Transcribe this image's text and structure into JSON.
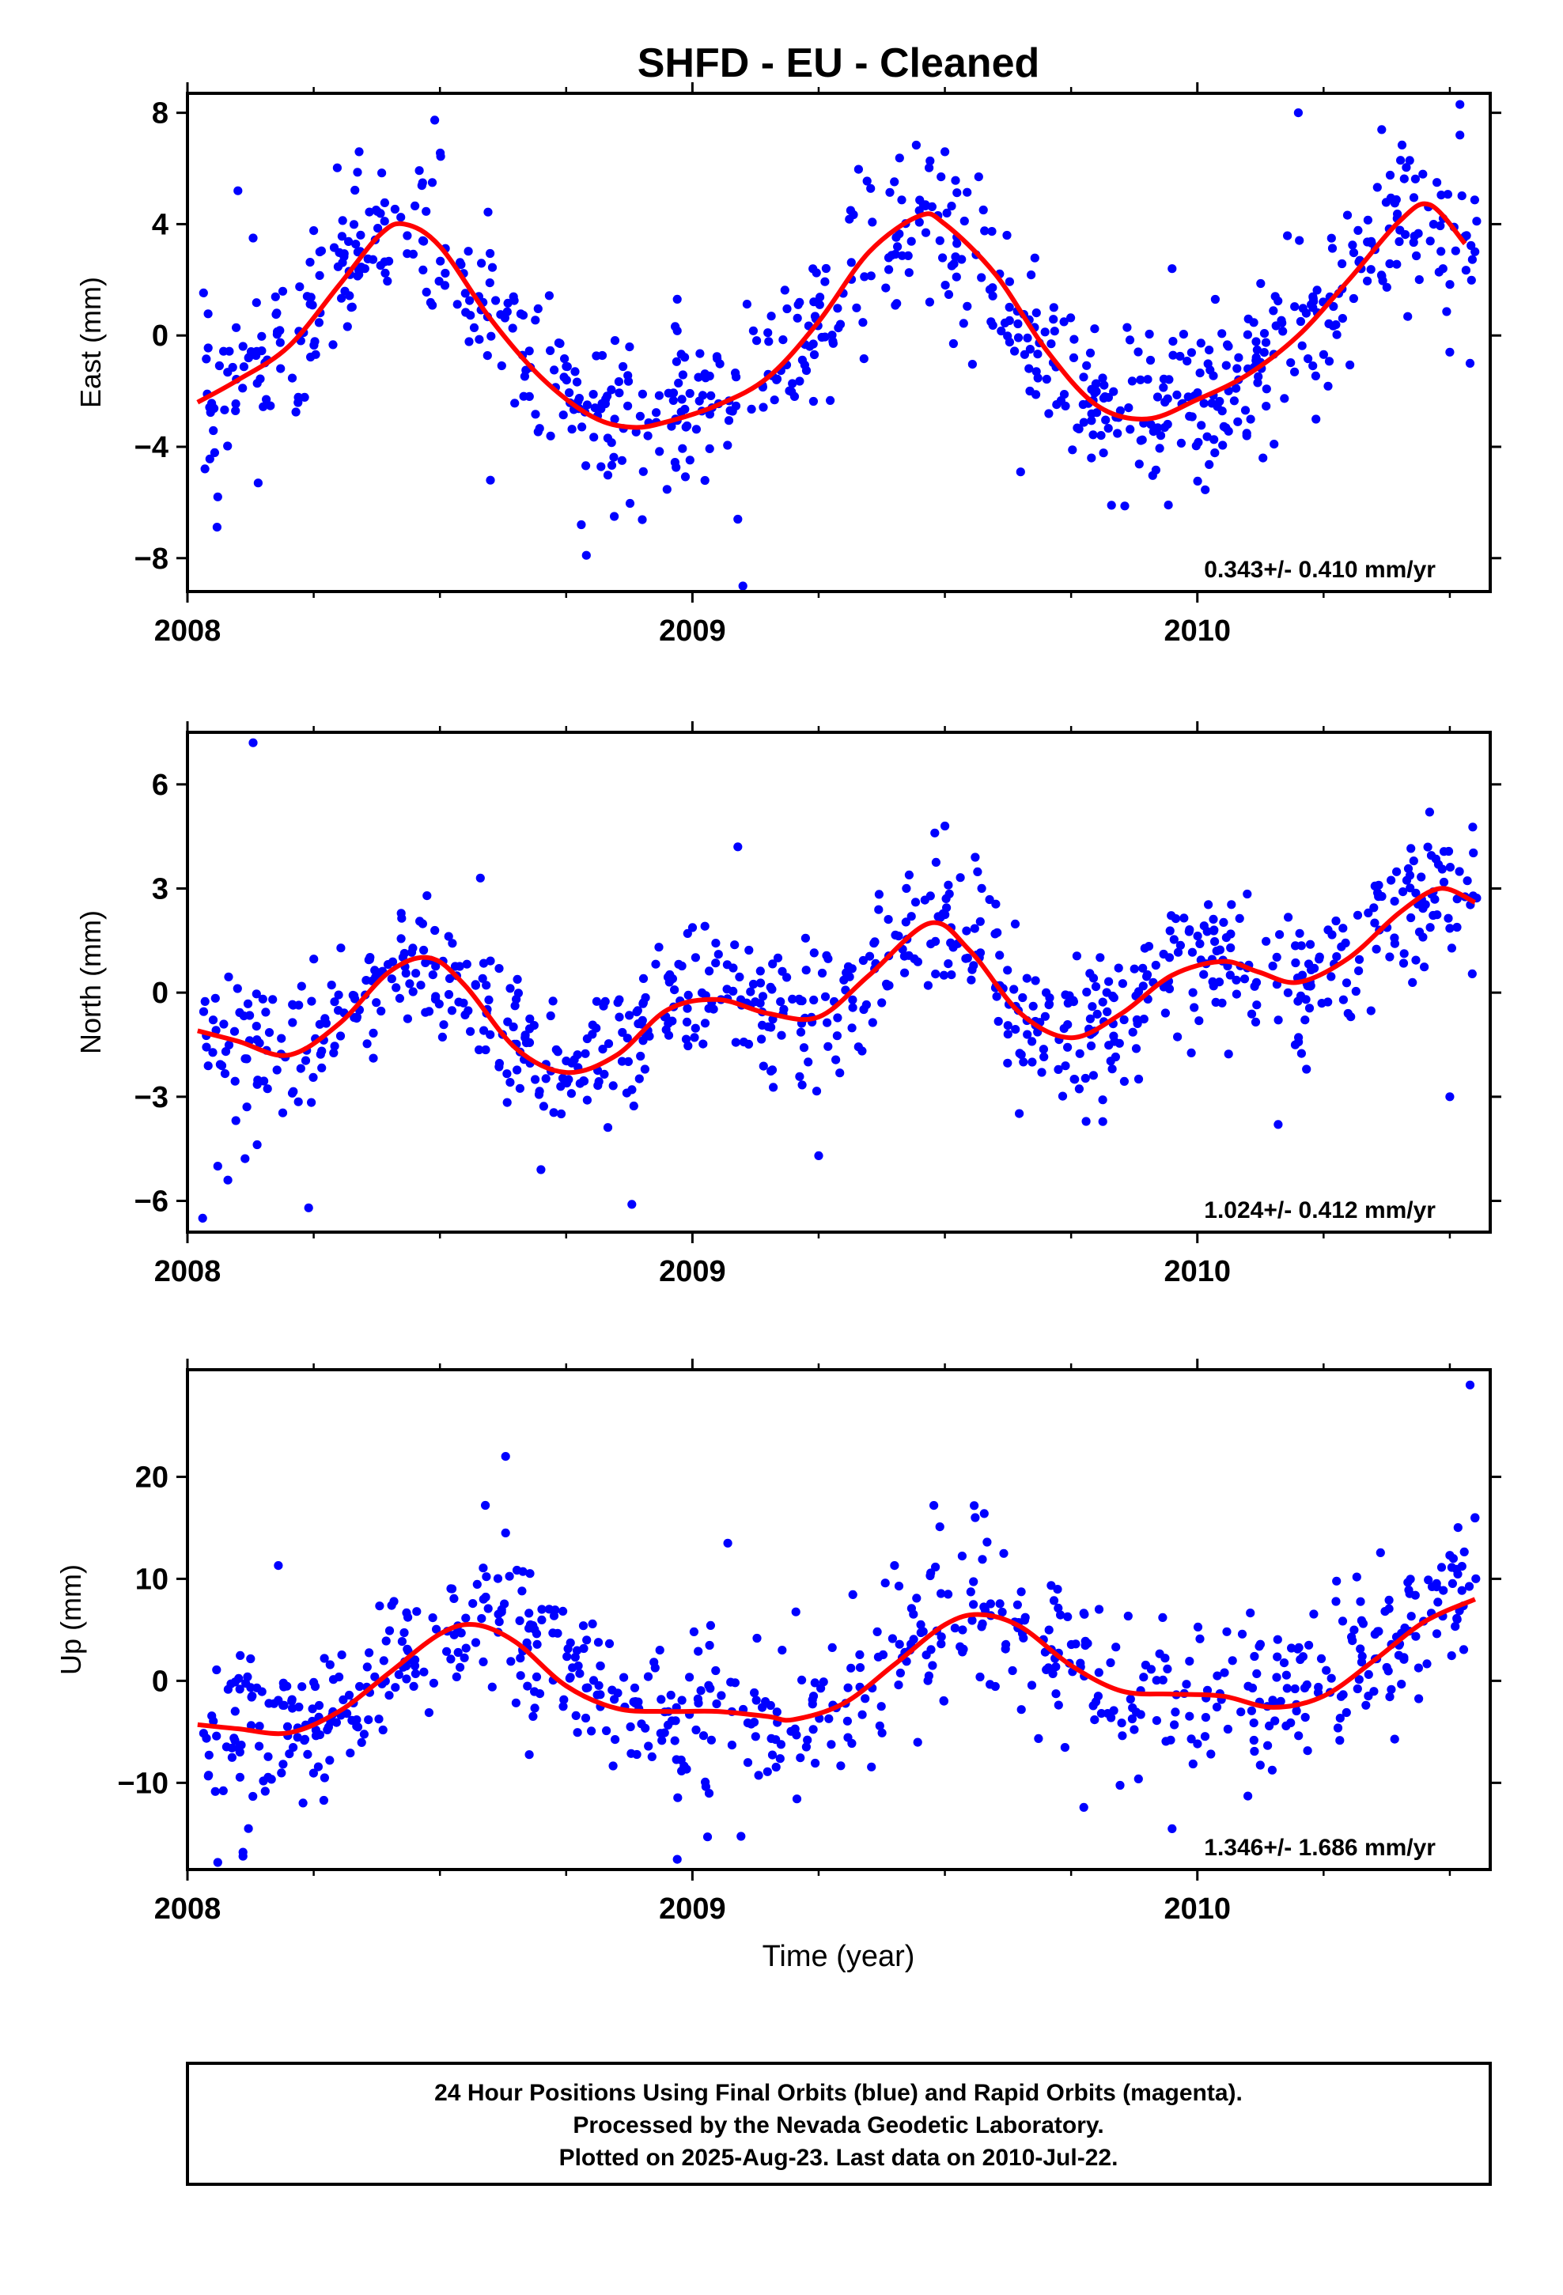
{
  "colors": {
    "final_orbit_points": "#0000ff",
    "trend_line": "#ff0000",
    "frame": "#000000",
    "background": "#ffffff"
  },
  "chart_data": {
    "title": "SHFD  - EU - Cleaned",
    "xlabel": "Time (year)",
    "xlim": [
      2008.0,
      2010.58
    ],
    "xticks": [
      2008,
      2009,
      2010
    ],
    "panels": [
      {
        "id": "east",
        "type": "scatter",
        "ylabel": "East (mm)",
        "ylim": [
          -9.2,
          8.7
        ],
        "yticks": [
          -8,
          -4,
          0,
          4,
          8
        ],
        "rate": "0.343+/- 0.410 mm/yr",
        "fit": {
          "x": [
            2008.02,
            2008.1,
            2008.2,
            2008.3,
            2008.38,
            2008.43,
            2008.5,
            2008.6,
            2008.7,
            2008.8,
            2008.88,
            2008.95,
            2009.05,
            2009.15,
            2009.25,
            2009.35,
            2009.45,
            2009.5,
            2009.6,
            2009.7,
            2009.8,
            2009.9,
            2010.0,
            2010.1,
            2010.2,
            2010.3,
            2010.4,
            2010.46,
            2010.53
          ],
          "y": [
            -2.4,
            -1.6,
            -0.4,
            1.8,
            3.6,
            4.0,
            3.2,
            0.6,
            -1.5,
            -2.9,
            -3.3,
            -3.1,
            -2.5,
            -1.5,
            0.5,
            3.0,
            4.3,
            4.0,
            2.2,
            -0.5,
            -2.5,
            -3.0,
            -2.3,
            -1.4,
            0.0,
            2.0,
            4.1,
            4.7,
            3.3
          ]
        },
        "n_points": 760,
        "noise_sd": 1.4,
        "outliers": [
          {
            "x": 2008.1,
            "y": 5.2
          },
          {
            "x": 2008.13,
            "y": 3.5
          },
          {
            "x": 2008.06,
            "y": -5.8
          },
          {
            "x": 2008.14,
            "y": -5.3
          },
          {
            "x": 2008.34,
            "y": 6.6
          },
          {
            "x": 2008.6,
            "y": -5.2
          },
          {
            "x": 2008.79,
            "y": -7.9
          },
          {
            "x": 2008.78,
            "y": -6.8
          },
          {
            "x": 2008.97,
            "y": 1.3
          },
          {
            "x": 2009.09,
            "y": -6.6
          },
          {
            "x": 2009.1,
            "y": -9.0
          },
          {
            "x": 2009.5,
            "y": 6.6
          },
          {
            "x": 2009.47,
            "y": 1.2
          },
          {
            "x": 2009.65,
            "y": -4.9
          },
          {
            "x": 2009.83,
            "y": -6.1
          },
          {
            "x": 2009.95,
            "y": 2.4
          },
          {
            "x": 2010.2,
            "y": 8.0
          },
          {
            "x": 2010.52,
            "y": 8.3
          },
          {
            "x": 2010.52,
            "y": 7.2
          },
          {
            "x": 2010.5,
            "y": -0.6
          },
          {
            "x": 2010.54,
            "y": -1.0
          },
          {
            "x": 2010.13,
            "y": -4.4
          }
        ]
      },
      {
        "id": "north",
        "type": "scatter",
        "ylabel": "North (mm)",
        "ylim": [
          -6.9,
          7.5
        ],
        "yticks": [
          -6,
          -3,
          0,
          3,
          6
        ],
        "rate": "1.024+/- 0.412 mm/yr",
        "fit": {
          "x": [
            2008.02,
            2008.1,
            2008.2,
            2008.3,
            2008.4,
            2008.48,
            2008.55,
            2008.65,
            2008.75,
            2008.85,
            2008.95,
            2009.05,
            2009.15,
            2009.25,
            2009.35,
            2009.47,
            2009.55,
            2009.65,
            2009.75,
            2009.85,
            2009.95,
            2010.05,
            2010.12,
            2010.2,
            2010.3,
            2010.4,
            2010.48,
            2010.55
          ],
          "y": [
            -1.1,
            -1.4,
            -1.8,
            -0.9,
            0.6,
            1.0,
            0.2,
            -1.6,
            -2.3,
            -1.8,
            -0.5,
            -0.2,
            -0.6,
            -0.7,
            0.5,
            2.0,
            1.2,
            -0.6,
            -1.3,
            -0.6,
            0.5,
            0.9,
            0.6,
            0.3,
            1.0,
            2.3,
            3.0,
            2.6
          ]
        },
        "n_points": 760,
        "noise_sd": 1.0,
        "outliers": [
          {
            "x": 2008.13,
            "y": 7.2
          },
          {
            "x": 2008.03,
            "y": -6.5
          },
          {
            "x": 2008.06,
            "y": -5.0
          },
          {
            "x": 2008.08,
            "y": -5.4
          },
          {
            "x": 2008.24,
            "y": -6.2
          },
          {
            "x": 2008.58,
            "y": 3.3
          },
          {
            "x": 2008.7,
            "y": -5.1
          },
          {
            "x": 2008.88,
            "y": -6.1
          },
          {
            "x": 2009.09,
            "y": 4.2
          },
          {
            "x": 2009.25,
            "y": -4.7
          },
          {
            "x": 2009.5,
            "y": 4.8
          },
          {
            "x": 2009.48,
            "y": 4.6
          },
          {
            "x": 2009.56,
            "y": 3.9
          },
          {
            "x": 2010.16,
            "y": -3.8
          },
          {
            "x": 2010.5,
            "y": -3.0
          },
          {
            "x": 2010.46,
            "y": 5.2
          }
        ]
      },
      {
        "id": "up",
        "type": "scatter",
        "ylabel": "Up (mm)",
        "ylim": [
          -18.5,
          30.5
        ],
        "yticks": [
          -10,
          0,
          10,
          20
        ],
        "rate": "1.346+/- 1.686 mm/yr",
        "fit": {
          "x": [
            2008.02,
            2008.1,
            2008.2,
            2008.3,
            2008.4,
            2008.5,
            2008.57,
            2008.65,
            2008.75,
            2008.85,
            2008.95,
            2009.05,
            2009.15,
            2009.2,
            2009.3,
            2009.4,
            2009.5,
            2009.57,
            2009.65,
            2009.75,
            2009.85,
            2009.95,
            2010.05,
            2010.15,
            2010.25,
            2010.35,
            2010.45,
            2010.55
          ],
          "y": [
            -4.3,
            -4.7,
            -5.1,
            -3.0,
            0.8,
            4.6,
            5.5,
            3.8,
            -0.5,
            -2.7,
            -3.0,
            -3.0,
            -3.5,
            -3.8,
            -2.2,
            1.6,
            5.5,
            6.5,
            5.3,
            1.5,
            -1.0,
            -1.3,
            -1.5,
            -2.6,
            -1.5,
            2.0,
            5.8,
            8.0
          ]
        },
        "n_points": 700,
        "noise_sd": 4.0,
        "outliers": [
          {
            "x": 2010.54,
            "y": 29.0
          },
          {
            "x": 2008.63,
            "y": 22.0
          },
          {
            "x": 2008.59,
            "y": 17.2
          },
          {
            "x": 2008.63,
            "y": 14.5
          },
          {
            "x": 2008.18,
            "y": 11.3
          },
          {
            "x": 2008.06,
            "y": -17.8
          },
          {
            "x": 2008.11,
            "y": -16.8
          },
          {
            "x": 2008.11,
            "y": -17.2
          },
          {
            "x": 2008.97,
            "y": -17.5
          },
          {
            "x": 2009.03,
            "y": -15.3
          },
          {
            "x": 2009.07,
            "y": 13.5
          },
          {
            "x": 2009.56,
            "y": 16.0
          },
          {
            "x": 2009.49,
            "y": 15.1
          },
          {
            "x": 2009.95,
            "y": -14.5
          },
          {
            "x": 2010.55,
            "y": 16.0
          },
          {
            "x": 2010.1,
            "y": -11.3
          },
          {
            "x": 2010.5,
            "y": 12.3
          }
        ]
      }
    ],
    "footer": [
      "24 Hour Positions Using Final Orbits (blue) and Rapid Orbits (magenta).",
      "Processed by the Nevada Geodetic Laboratory.",
      "Plotted on 2025-Aug-23. Last data on 2010-Jul-22."
    ]
  }
}
